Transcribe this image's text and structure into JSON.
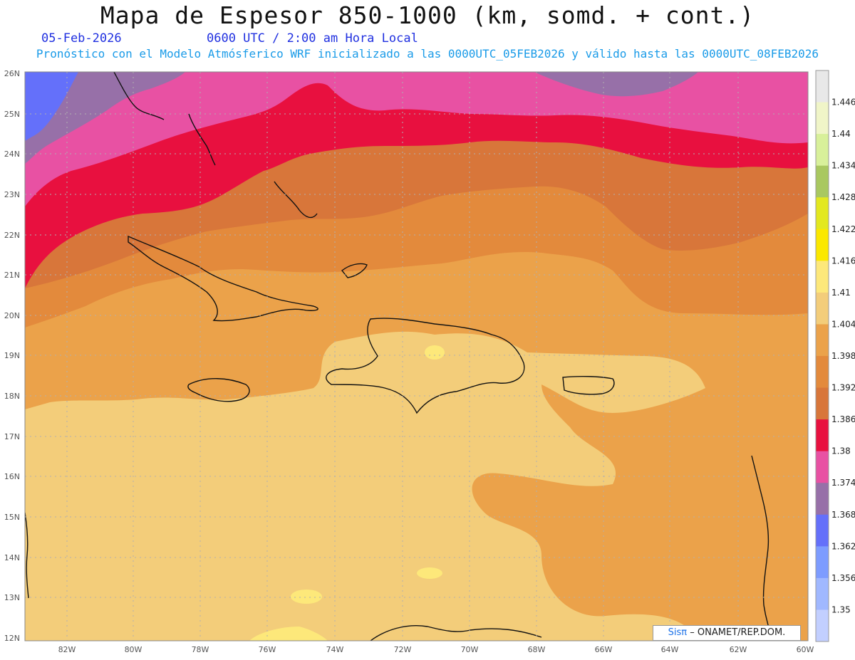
{
  "header": {
    "title": "Mapa de Espesor 850-1000 (km, somd. + cont.)",
    "date": "05-Feb-2026",
    "time": "0600 UTC / 2:00 am Hora Local",
    "subtitle": "Pronóstico con el Modelo Atmósferico WRF inicializado a las 0000UTC_05FEB2026 y válido hasta las  0000UTC_08FEB2026"
  },
  "axes": {
    "lat_labels": [
      "26N",
      "25N",
      "24N",
      "23N",
      "22N",
      "21N",
      "20N",
      "19N",
      "18N",
      "17N",
      "16N",
      "15N",
      "14N",
      "13N",
      "12N"
    ],
    "lon_labels": [
      "82W",
      "80W",
      "78W",
      "76W",
      "74W",
      "72W",
      "70W",
      "68W",
      "66W",
      "64W",
      "62W",
      "60W"
    ]
  },
  "legend": {
    "levels": [
      "1.446",
      "1.44",
      "1.434",
      "1.428",
      "1.422",
      "1.416",
      "1.41",
      "1.404",
      "1.398",
      "1.392",
      "1.386",
      "1.38",
      "1.374",
      "1.368",
      "1.362",
      "1.356",
      "1.35"
    ],
    "colors": [
      "#e8e8e8",
      "#f0f5c8",
      "#d8f09a",
      "#a9c860",
      "#e3e81f",
      "#fbe800",
      "#fde87a",
      "#f3cd7a",
      "#eba24a",
      "#e38a3c",
      "#d8763a",
      "#e8103f",
      "#e851a3",
      "#9770a8",
      "#6470fa",
      "#7d9cff",
      "#a0b8ff",
      "#c2cfff"
    ]
  },
  "credit": {
    "brand": "Sisπ",
    "text": "– ONAMET/REP.DOM."
  }
}
